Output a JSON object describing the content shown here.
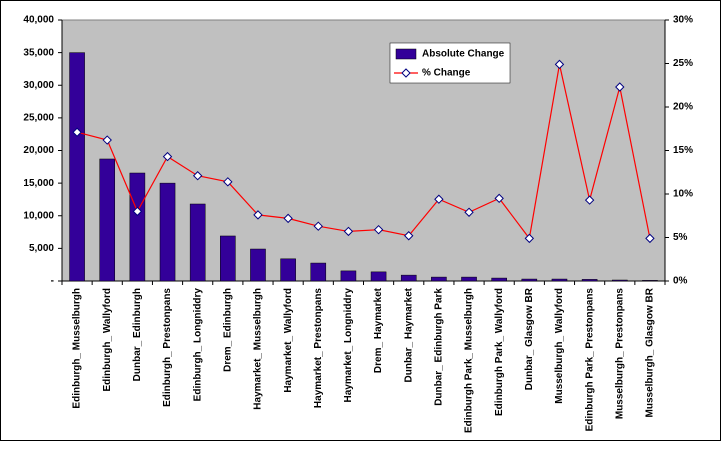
{
  "chart_data": {
    "type": "bar_line",
    "categories": [
      "Edinburgh_ Musselburgh",
      "Edinburgh_ Wallyford",
      "Dunbar_ Edinburgh",
      "Edinburgh_ Prestonpans",
      "Edinburgh_ Longniddry",
      "Drem_ Edinburgh",
      "Haymarket_ Musselburgh",
      "Haymarket_ Wallyford",
      "Haymarket_ Prestonpans",
      "Haymarket_ Longniddry",
      "Drem_ Haymarket",
      "Dunbar_ Haymarket",
      "Dunbar_ Edinburgh Park",
      "Edinburgh Park_ Musselburgh",
      "Edinburgh Park_ Wallyford",
      "Dunbar_ Glasgow BR",
      "Musselburgh_ Wallyford",
      "Edinburgh Park_ Prestonpans",
      "Musselburgh_ Prestonpans",
      "Musselburgh_ Glasgow BR"
    ],
    "series": [
      {
        "name": "Absolute Change",
        "type": "bar",
        "color": "#330099",
        "values": [
          35000,
          18700,
          16550,
          15000,
          11800,
          6900,
          4900,
          3400,
          2750,
          1550,
          1400,
          900,
          600,
          600,
          450,
          300,
          300,
          250,
          150,
          100
        ]
      },
      {
        "name": "% Change",
        "type": "line",
        "axis": "y2",
        "color": "#ff0000",
        "values": [
          17.1,
          16.2,
          8.0,
          14.3,
          12.1,
          11.4,
          7.6,
          7.2,
          6.3,
          5.7,
          5.9,
          5.2,
          9.4,
          7.9,
          9.5,
          4.9,
          24.9,
          9.3,
          22.3,
          4.9
        ]
      }
    ],
    "ylim": [
      0,
      40000
    ],
    "yticks": [
      {
        "value": 0,
        "label": "-"
      },
      {
        "value": 5000,
        "label": "5,000"
      },
      {
        "value": 10000,
        "label": "10,000"
      },
      {
        "value": 15000,
        "label": "15,000"
      },
      {
        "value": 20000,
        "label": "20,000"
      },
      {
        "value": 25000,
        "label": "25,000"
      },
      {
        "value": 30000,
        "label": "30,000"
      },
      {
        "value": 35000,
        "label": "35,000"
      },
      {
        "value": 40000,
        "label": "40,000"
      }
    ],
    "y2lim": [
      0,
      30
    ],
    "y2ticks": [
      {
        "value": 0,
        "label": "0%"
      },
      {
        "value": 5,
        "label": "5%"
      },
      {
        "value": 10,
        "label": "10%"
      },
      {
        "value": 15,
        "label": "15%"
      },
      {
        "value": 20,
        "label": "20%"
      },
      {
        "value": 25,
        "label": "25%"
      },
      {
        "value": 30,
        "label": "30%"
      }
    ],
    "grid": false,
    "legend": "top-right"
  }
}
